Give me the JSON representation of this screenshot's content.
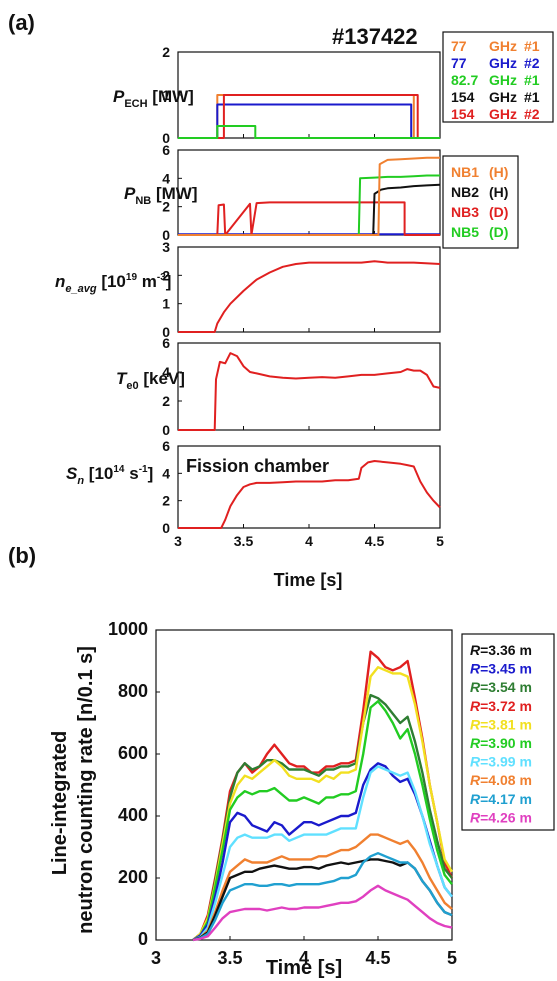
{
  "figure": {
    "panel_a_label": "(a)",
    "panel_b_label": "(b)",
    "shot": "#137422",
    "xlabel": "Time [s]"
  },
  "chart_data": [
    {
      "type": "line",
      "id": "pech",
      "ylabel": {
        "base": "P",
        "sub": "ECH",
        "unit": " [MW]"
      },
      "ylim": [
        0,
        2
      ],
      "yticks": [
        0,
        1,
        2
      ],
      "xlim": [
        3,
        5
      ],
      "xtick_labels_shown": false,
      "legend": {
        "placement": "right",
        "entries": [
          {
            "freq": "77",
            "unit": "GHz",
            "gyro": "#1",
            "color": "#f08030"
          },
          {
            "freq": "77",
            "unit": "GHz",
            "gyro": "#2",
            "color": "#1a1acc"
          },
          {
            "freq": "82.7",
            "unit": "GHz",
            "gyro": "#1",
            "color": "#22cc22"
          },
          {
            "freq": "154",
            "unit": "GHz",
            "gyro": "#1",
            "color": "#111111"
          },
          {
            "freq": "154",
            "unit": "GHz",
            "gyro": "#2",
            "color": "#e02020"
          }
        ]
      },
      "series": [
        {
          "color": "#f08030",
          "x": [
            3.0,
            3.3,
            3.3,
            4.8,
            4.8,
            5.0
          ],
          "y": [
            0,
            0,
            1.0,
            1.0,
            0,
            0
          ]
        },
        {
          "color": "#1a1acc",
          "x": [
            3.0,
            3.3,
            3.3,
            4.78,
            4.78,
            5.0
          ],
          "y": [
            0,
            0,
            0.78,
            0.78,
            0,
            0
          ]
        },
        {
          "color": "#e02020",
          "x": [
            3.0,
            3.35,
            3.35,
            4.83,
            4.83,
            5.0
          ],
          "y": [
            0,
            0,
            1.0,
            1.0,
            0,
            0
          ]
        },
        {
          "color": "#22cc22",
          "x": [
            3.0,
            3.3,
            3.3,
            3.59,
            3.59,
            5.0
          ],
          "y": [
            0,
            0,
            0.28,
            0.28,
            0,
            0
          ]
        }
      ]
    },
    {
      "type": "line",
      "id": "pnb",
      "ylabel": {
        "base": "P",
        "sub": "NB",
        "unit": " [MW]"
      },
      "ylim": [
        0,
        6
      ],
      "yticks": [
        0,
        2,
        4,
        6
      ],
      "xlim": [
        3,
        5
      ],
      "xtick_labels_shown": false,
      "legend": {
        "placement": "right",
        "entries": [
          {
            "name": "NB1",
            "ion": "(H)",
            "color": "#f08030"
          },
          {
            "name": "NB2",
            "ion": "(H)",
            "color": "#111111"
          },
          {
            "name": "NB3",
            "ion": "(D)",
            "color": "#e02020"
          },
          {
            "name": "NB5",
            "ion": "(D)",
            "color": "#22cc22"
          }
        ]
      },
      "series": [
        {
          "color": "#1a1acc",
          "x": [
            3.0,
            5.0
          ],
          "y": [
            0.05,
            0.05
          ]
        },
        {
          "color": "#e02020",
          "x": [
            3.0,
            3.3,
            3.31,
            3.35,
            3.36,
            3.55,
            3.56,
            3.6,
            3.7,
            3.9,
            4.1,
            4.3,
            4.5,
            4.7,
            4.73,
            4.73,
            5.0
          ],
          "y": [
            0,
            0,
            2.1,
            2.15,
            0,
            2.2,
            0,
            2.25,
            2.3,
            2.3,
            2.3,
            2.3,
            2.3,
            2.3,
            2.3,
            0,
            0
          ]
        },
        {
          "color": "#22cc22",
          "x": [
            3.0,
            4.38,
            4.39,
            4.5,
            4.6,
            4.7,
            4.8,
            4.9,
            5.0
          ],
          "y": [
            0,
            0,
            4.0,
            4.05,
            4.1,
            4.1,
            4.15,
            4.2,
            4.2
          ]
        },
        {
          "color": "#111111",
          "x": [
            3.0,
            4.49,
            4.5,
            4.55,
            4.6,
            4.7,
            4.8,
            4.9,
            5.0
          ],
          "y": [
            0,
            0,
            2.9,
            3.2,
            3.3,
            3.35,
            3.45,
            3.5,
            3.55
          ]
        },
        {
          "color": "#f08030",
          "x": [
            3.0,
            4.53,
            4.54,
            4.6,
            4.7,
            4.8,
            4.9,
            5.0
          ],
          "y": [
            0,
            0,
            5.0,
            5.3,
            5.35,
            5.4,
            5.45,
            5.45
          ]
        }
      ]
    },
    {
      "type": "line",
      "id": "ne",
      "ylabel": {
        "base": "n",
        "sub": "e_avg",
        "unit": " [10",
        "exp": "19",
        "unit2": " m",
        "exp2": "-3",
        "unit3": "]"
      },
      "ylim": [
        0,
        3
      ],
      "yticks": [
        0,
        1,
        2,
        3
      ],
      "xlim": [
        3,
        5
      ],
      "xtick_labels_shown": false,
      "series": [
        {
          "color": "#e02020",
          "x": [
            3.0,
            3.28,
            3.3,
            3.35,
            3.4,
            3.5,
            3.6,
            3.7,
            3.8,
            3.9,
            4.0,
            4.2,
            4.4,
            4.5,
            4.6,
            4.8,
            5.0
          ],
          "y": [
            0,
            0,
            0.3,
            0.7,
            1.0,
            1.45,
            1.85,
            2.1,
            2.3,
            2.4,
            2.45,
            2.45,
            2.45,
            2.5,
            2.45,
            2.45,
            2.4
          ]
        }
      ]
    },
    {
      "type": "line",
      "id": "te",
      "ylabel": {
        "base": "T",
        "sub": "e0",
        "unit": " [keV]"
      },
      "ylim": [
        0,
        6
      ],
      "yticks": [
        0,
        2,
        4,
        6
      ],
      "xlim": [
        3,
        5
      ],
      "xtick_labels_shown": false,
      "series": [
        {
          "color": "#e02020",
          "x": [
            3.0,
            3.28,
            3.29,
            3.32,
            3.36,
            3.4,
            3.45,
            3.5,
            3.55,
            3.6,
            3.7,
            3.8,
            3.9,
            4.0,
            4.1,
            4.2,
            4.3,
            4.4,
            4.5,
            4.6,
            4.7,
            4.75,
            4.8,
            4.85,
            4.9,
            4.95,
            5.0
          ],
          "y": [
            0,
            0,
            3.5,
            4.7,
            4.6,
            5.3,
            5.1,
            4.4,
            4.0,
            3.9,
            3.7,
            3.6,
            3.55,
            3.6,
            3.65,
            3.6,
            3.7,
            3.8,
            3.8,
            3.9,
            4.0,
            4.2,
            4.1,
            4.1,
            3.8,
            3.0,
            2.9
          ]
        }
      ]
    },
    {
      "type": "line",
      "id": "sn",
      "ylabel": {
        "base": "S",
        "sub": "n",
        "unit": " [10",
        "exp": "14",
        "unit2": " s",
        "exp2": "-1",
        "unit3": "]"
      },
      "annotation": "Fission chamber",
      "ylim": [
        0,
        6
      ],
      "yticks": [
        0,
        2,
        4,
        6
      ],
      "xlim": [
        3,
        5
      ],
      "xticks": [
        3,
        3.5,
        4,
        4.5,
        5
      ],
      "xtick_labels": [
        "3",
        "3.5",
        "4",
        "4.5",
        "5"
      ],
      "xlabel": "Time [s]",
      "series": [
        {
          "color": "#e02020",
          "x": [
            3.0,
            3.33,
            3.36,
            3.4,
            3.45,
            3.5,
            3.55,
            3.6,
            3.7,
            3.8,
            3.9,
            4.0,
            4.1,
            4.2,
            4.3,
            4.38,
            4.4,
            4.45,
            4.5,
            4.6,
            4.7,
            4.75,
            4.8,
            4.85,
            4.9,
            4.95,
            5.0
          ],
          "y": [
            0,
            0,
            0.6,
            1.6,
            2.4,
            3.0,
            3.2,
            3.3,
            3.3,
            3.35,
            3.4,
            3.4,
            3.4,
            3.5,
            3.5,
            3.6,
            4.4,
            4.8,
            4.9,
            4.8,
            4.7,
            4.6,
            4.5,
            3.4,
            2.6,
            2.0,
            1.5
          ]
        }
      ]
    },
    {
      "type": "line",
      "id": "neutron",
      "ylabel": {
        "line1": "Line-integrated",
        "line2": "neutron counting rate  [n/0.1 s]"
      },
      "xlabel": "Time [s]",
      "ylim": [
        0,
        1000
      ],
      "yticks": [
        0,
        200,
        400,
        600,
        800,
        1000
      ],
      "xlim": [
        3,
        5
      ],
      "xticks": [
        3,
        3.5,
        4,
        4.5,
        5
      ],
      "xtick_labels": [
        "3",
        "3.5",
        "4",
        "4.5",
        "5"
      ],
      "legend": {
        "placement": "right",
        "entries": [
          {
            "label": "=3.36 m",
            "color": "#111111"
          },
          {
            "label": "=3.45 m",
            "color": "#1a1acc"
          },
          {
            "label": "=3.54 m",
            "color": "#2e7d32"
          },
          {
            "label": "=3.72 m",
            "color": "#e02020"
          },
          {
            "label": "=3.81 m",
            "color": "#f2e020"
          },
          {
            "label": "=3.90 m",
            "color": "#22cc22"
          },
          {
            "label": "=3.99 m",
            "color": "#60e0ff"
          },
          {
            "label": "=4.08 m",
            "color": "#f08030"
          },
          {
            "label": "=4.17 m",
            "color": "#20a0d0"
          },
          {
            "label": "=4.26 m",
            "color": "#e040c0"
          }
        ],
        "symbol": "R"
      },
      "x": [
        3.25,
        3.3,
        3.35,
        3.4,
        3.45,
        3.5,
        3.55,
        3.6,
        3.65,
        3.7,
        3.75,
        3.8,
        3.85,
        3.9,
        3.95,
        4.0,
        4.05,
        4.1,
        4.15,
        4.2,
        4.25,
        4.3,
        4.35,
        4.4,
        4.45,
        4.5,
        4.55,
        4.6,
        4.65,
        4.7,
        4.75,
        4.8,
        4.85,
        4.9,
        4.95,
        5.0
      ],
      "series": [
        {
          "color": "#e02020",
          "y": [
            0,
            20,
            80,
            200,
            330,
            480,
            540,
            570,
            540,
            560,
            600,
            630,
            600,
            570,
            560,
            560,
            540,
            540,
            560,
            560,
            570,
            570,
            580,
            740,
            930,
            910,
            880,
            870,
            880,
            900,
            780,
            650,
            500,
            380,
            250,
            200
          ]
        },
        {
          "color": "#2e7d32",
          "y": [
            0,
            20,
            70,
            190,
            320,
            460,
            540,
            570,
            550,
            560,
            580,
            580,
            570,
            550,
            550,
            550,
            540,
            530,
            550,
            550,
            560,
            560,
            570,
            700,
            790,
            780,
            760,
            730,
            700,
            720,
            640,
            540,
            420,
            320,
            230,
            200
          ]
        },
        {
          "color": "#f2e020",
          "y": [
            0,
            20,
            70,
            180,
            310,
            440,
            500,
            530,
            520,
            540,
            560,
            580,
            560,
            530,
            520,
            520,
            520,
            510,
            530,
            520,
            540,
            540,
            550,
            700,
            850,
            880,
            870,
            860,
            860,
            850,
            760,
            640,
            500,
            380,
            260,
            220
          ]
        },
        {
          "color": "#22cc22",
          "y": [
            0,
            15,
            60,
            170,
            290,
            420,
            460,
            480,
            470,
            480,
            480,
            490,
            470,
            450,
            450,
            460,
            450,
            440,
            460,
            460,
            470,
            470,
            480,
            600,
            750,
            770,
            740,
            700,
            650,
            680,
            600,
            500,
            390,
            290,
            210,
            180
          ]
        },
        {
          "color": "#1a1acc",
          "y": [
            0,
            15,
            50,
            140,
            250,
            380,
            410,
            400,
            370,
            360,
            350,
            380,
            370,
            340,
            360,
            380,
            380,
            370,
            380,
            390,
            400,
            400,
            410,
            500,
            550,
            570,
            560,
            530,
            510,
            520,
            470,
            400,
            320,
            240,
            170,
            140
          ]
        },
        {
          "color": "#60e0ff",
          "y": [
            0,
            10,
            40,
            120,
            210,
            300,
            330,
            340,
            330,
            330,
            330,
            340,
            340,
            320,
            330,
            340,
            340,
            340,
            340,
            350,
            360,
            360,
            360,
            460,
            540,
            560,
            550,
            540,
            530,
            540,
            480,
            400,
            310,
            240,
            170,
            140
          ]
        },
        {
          "color": "#f08030",
          "y": [
            0,
            8,
            30,
            90,
            160,
            220,
            240,
            260,
            250,
            250,
            250,
            260,
            270,
            260,
            260,
            260,
            260,
            270,
            270,
            280,
            290,
            290,
            300,
            320,
            340,
            340,
            330,
            320,
            310,
            320,
            290,
            250,
            200,
            160,
            120,
            100
          ]
        },
        {
          "color": "#111111",
          "y": [
            0,
            8,
            25,
            80,
            140,
            200,
            210,
            220,
            220,
            230,
            235,
            240,
            235,
            230,
            230,
            235,
            235,
            230,
            240,
            245,
            250,
            245,
            250,
            255,
            260,
            260,
            255,
            250,
            240,
            250,
            230,
            190,
            160,
            120,
            90,
            80
          ]
        },
        {
          "color": "#20a0d0",
          "y": [
            0,
            6,
            20,
            65,
            120,
            160,
            170,
            180,
            180,
            175,
            175,
            180,
            180,
            175,
            180,
            180,
            180,
            180,
            185,
            190,
            200,
            200,
            210,
            250,
            270,
            280,
            270,
            260,
            250,
            250,
            230,
            190,
            160,
            120,
            90,
            80
          ]
        },
        {
          "color": "#e040c0",
          "y": [
            0,
            4,
            12,
            40,
            70,
            90,
            95,
            100,
            100,
            100,
            95,
            100,
            105,
            100,
            100,
            105,
            105,
            105,
            110,
            115,
            120,
            120,
            125,
            140,
            160,
            175,
            160,
            150,
            140,
            130,
            110,
            90,
            70,
            55,
            45,
            40
          ]
        }
      ]
    }
  ]
}
